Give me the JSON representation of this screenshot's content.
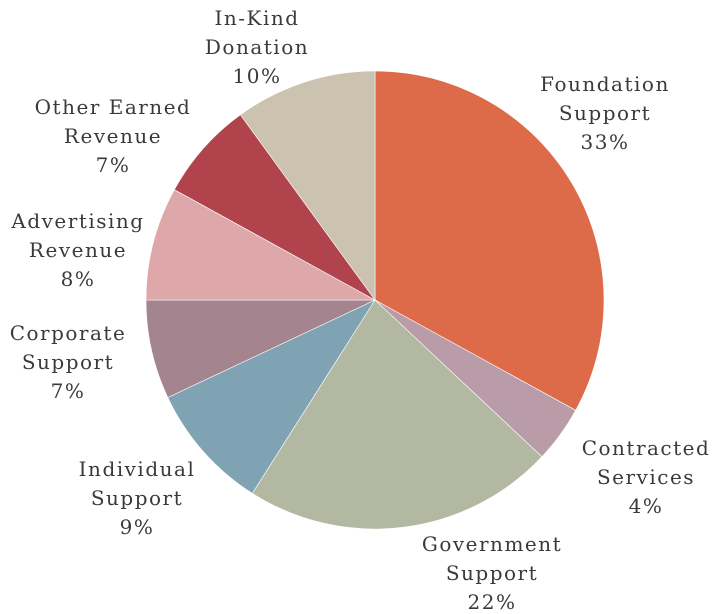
{
  "chart_data": {
    "type": "pie",
    "title": "",
    "slices": [
      {
        "label": [
          "Foundation",
          "Support"
        ],
        "percent_label": "33%",
        "value": 33,
        "color": "#dd6b4a"
      },
      {
        "label": [
          "Contracted",
          "Services"
        ],
        "percent_label": "4%",
        "value": 4,
        "color": "#b99ca7"
      },
      {
        "label": [
          "Government",
          "Support"
        ],
        "percent_label": "22%",
        "value": 22,
        "color": "#b3b8a2"
      },
      {
        "label": [
          "Individual",
          "Support"
        ],
        "percent_label": "9%",
        "value": 9,
        "color": "#80a3b3"
      },
      {
        "label": [
          "Corporate",
          "Support"
        ],
        "percent_label": "7%",
        "value": 7,
        "color": "#a4848f"
      },
      {
        "label": [
          "Advertising",
          "Revenue"
        ],
        "percent_label": "8%",
        "value": 8,
        "color": "#dea8ab"
      },
      {
        "label": [
          "Other Earned",
          "Revenue"
        ],
        "percent_label": "7%",
        "value": 7,
        "color": "#b0434c"
      },
      {
        "label": [
          "In-Kind",
          "Donation"
        ],
        "percent_label": "10%",
        "value": 10,
        "color": "#ccc2b0"
      }
    ]
  }
}
